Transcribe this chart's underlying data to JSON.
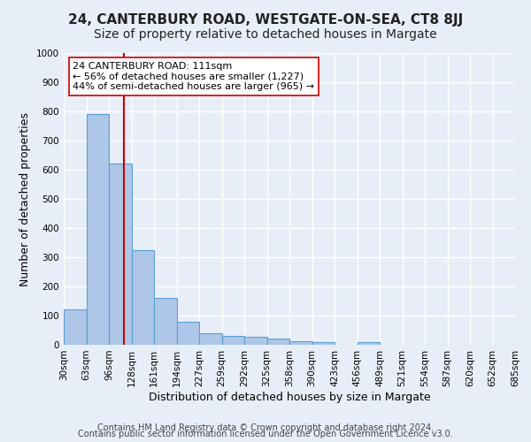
{
  "title": "24, CANTERBURY ROAD, WESTGATE-ON-SEA, CT8 8JJ",
  "subtitle": "Size of property relative to detached houses in Margate",
  "xlabel": "Distribution of detached houses by size in Margate",
  "ylabel": "Number of detached properties",
  "bin_labels": [
    "30sqm",
    "63sqm",
    "96sqm",
    "128sqm",
    "161sqm",
    "194sqm",
    "227sqm",
    "259sqm",
    "292sqm",
    "325sqm",
    "358sqm",
    "390sqm",
    "423sqm",
    "456sqm",
    "489sqm",
    "521sqm",
    "554sqm",
    "587sqm",
    "620sqm",
    "652sqm",
    "685sqm"
  ],
  "bar_values": [
    120,
    790,
    620,
    325,
    160,
    78,
    40,
    30,
    27,
    20,
    13,
    8,
    0,
    8,
    0,
    0,
    0,
    0,
    0,
    0
  ],
  "bar_color": "#aec6e8",
  "bar_edge_color": "#5a9fd4",
  "background_color": "#e8eef8",
  "grid_color": "#ffffff",
  "red_line_x": 2.67,
  "red_line_color": "#cc0000",
  "annotation_text": "24 CANTERBURY ROAD: 111sqm\n← 56% of detached houses are smaller (1,227)\n44% of semi-detached houses are larger (965) →",
  "annotation_box_color": "#ffffff",
  "annotation_box_edge": "#cc0000",
  "ylim": [
    0,
    1000
  ],
  "yticks": [
    0,
    100,
    200,
    300,
    400,
    500,
    600,
    700,
    800,
    900,
    1000
  ],
  "footer_line1": "Contains HM Land Registry data © Crown copyright and database right 2024.",
  "footer_line2": "Contains public sector information licensed under the Open Government Licence v3.0.",
  "title_fontsize": 11,
  "subtitle_fontsize": 10,
  "axis_label_fontsize": 9,
  "tick_fontsize": 7.5,
  "annotation_fontsize": 8,
  "footer_fontsize": 7
}
